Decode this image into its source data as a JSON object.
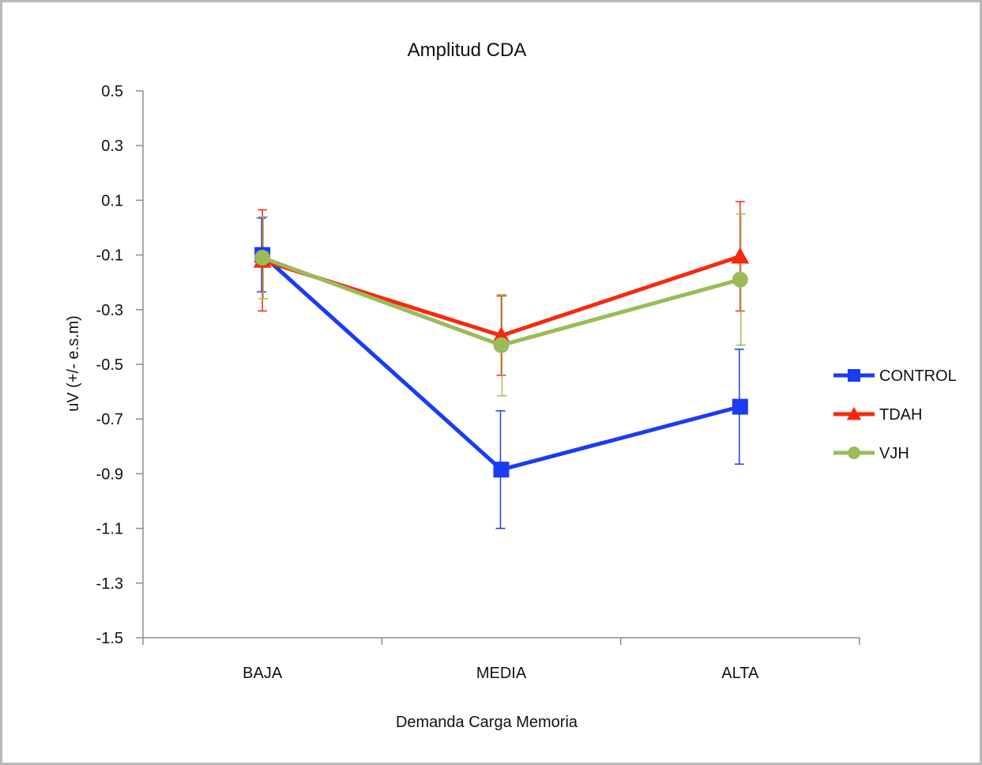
{
  "chart_data": {
    "type": "line",
    "title": "Amplitud CDA",
    "xlabel": "Demanda Carga Memoria",
    "ylabel": "uV  (+/- e.s.m)",
    "categories": [
      "BAJA",
      "MEDIA",
      "ALTA"
    ],
    "ylim": [
      -1.5,
      0.5
    ],
    "yticks": [
      0.5,
      0.3,
      0.1,
      -0.1,
      -0.3,
      -0.5,
      -0.7,
      -0.9,
      -1.1,
      -1.3,
      -1.5
    ],
    "ytick_labels": [
      "0.5",
      "0.3",
      "0.1",
      "-0.1",
      "-0.3",
      "-0.5",
      "-0.7",
      "-0.9",
      "-1.1",
      "-1.3",
      "-1.5"
    ],
    "grid": false,
    "legend_position": "right",
    "series": [
      {
        "name": "CONTROL",
        "color": "#1a3cf5",
        "marker": "square",
        "values": [
          -0.1,
          -0.885,
          -0.655
        ],
        "error": [
          0.135,
          0.215,
          0.21
        ]
      },
      {
        "name": "TDAH",
        "color": "#f52a0e",
        "marker": "triangle",
        "values": [
          -0.12,
          -0.395,
          -0.105
        ],
        "error": [
          0.185,
          0.145,
          0.2
        ]
      },
      {
        "name": "VJH",
        "color": "#9bbb59",
        "marker": "circle",
        "values": [
          -0.11,
          -0.43,
          -0.19
        ],
        "error": [
          0.15,
          0.185,
          0.24
        ]
      }
    ]
  }
}
